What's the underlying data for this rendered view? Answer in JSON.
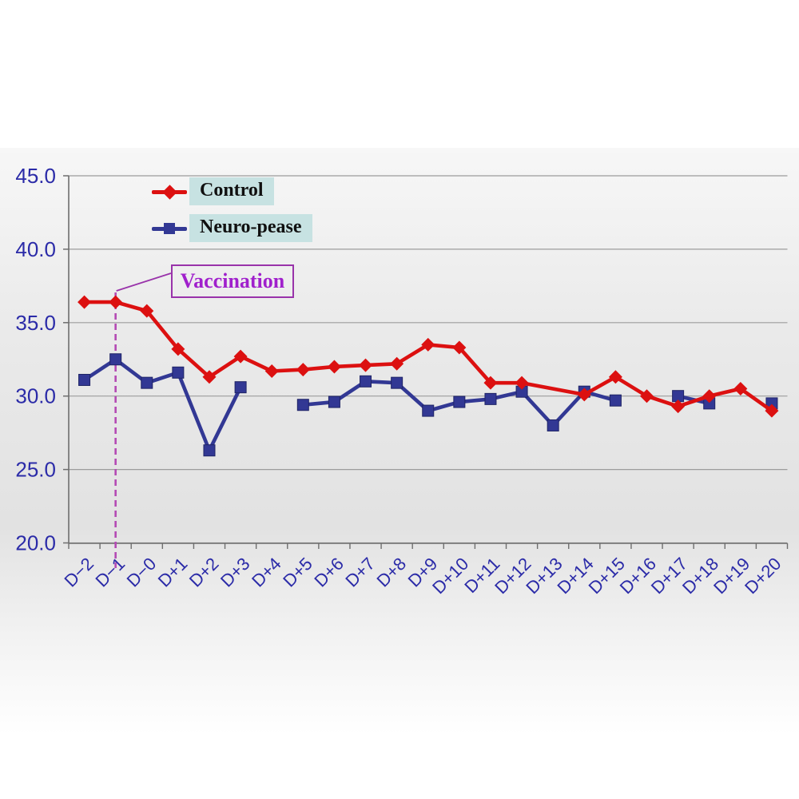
{
  "legend": {
    "items": [
      {
        "label": "Control",
        "color": "#dc1010",
        "marker": "diamond"
      },
      {
        "label": "Neuro-pease",
        "color": "#323894",
        "marker": "square"
      }
    ],
    "background": "#c7e2e2"
  },
  "annotation": {
    "text": "Vaccination",
    "category": "D−1",
    "color": "#a020cc",
    "border_color": "#9933aa",
    "line_style": "dashed",
    "line_color": "#b44ab4"
  },
  "chart_data": {
    "type": "line",
    "categories": [
      "D−2",
      "D−1",
      "D−0",
      "D+1",
      "D+2",
      "D+3",
      "D+4",
      "D+5",
      "D+6",
      "D+7",
      "D+8",
      "D+9",
      "D+10",
      "D+11",
      "D+12",
      "D+13",
      "D+14",
      "D+15",
      "D+16",
      "D+17",
      "D+18",
      "D+19",
      "D+20"
    ],
    "series": [
      {
        "name": "Control",
        "color": "#dc1010",
        "marker": "diamond",
        "connect_gaps": true,
        "values": [
          36.4,
          36.4,
          35.8,
          33.2,
          31.3,
          32.7,
          31.7,
          31.8,
          32.0,
          32.1,
          32.2,
          33.5,
          33.3,
          30.9,
          30.9,
          null,
          30.1,
          31.3,
          30.0,
          29.3,
          30.0,
          30.5,
          29.0
        ]
      },
      {
        "name": "Neuro-pease",
        "color": "#323894",
        "marker": "square",
        "connect_gaps": false,
        "values": [
          31.1,
          32.5,
          30.9,
          31.6,
          26.3,
          30.6,
          null,
          29.4,
          29.6,
          31.0,
          30.9,
          29.0,
          29.6,
          29.8,
          30.3,
          28.0,
          30.3,
          29.7,
          null,
          30.0,
          29.5,
          null,
          29.5
        ]
      }
    ],
    "title": "",
    "xlabel": "",
    "ylabel": "",
    "ylim": [
      20,
      45
    ],
    "yticks": [
      20,
      25,
      30,
      35,
      40,
      45
    ],
    "ytick_labels": [
      "20.0",
      "25.0",
      "30.0",
      "35.0",
      "40.0",
      "45.0"
    ],
    "grid": "horizontal",
    "legend_position": "top-left-inside",
    "axis_label_color": "#2b2ba8",
    "grid_color": "#9c9c9c",
    "axis_color": "#6e6e6e"
  }
}
